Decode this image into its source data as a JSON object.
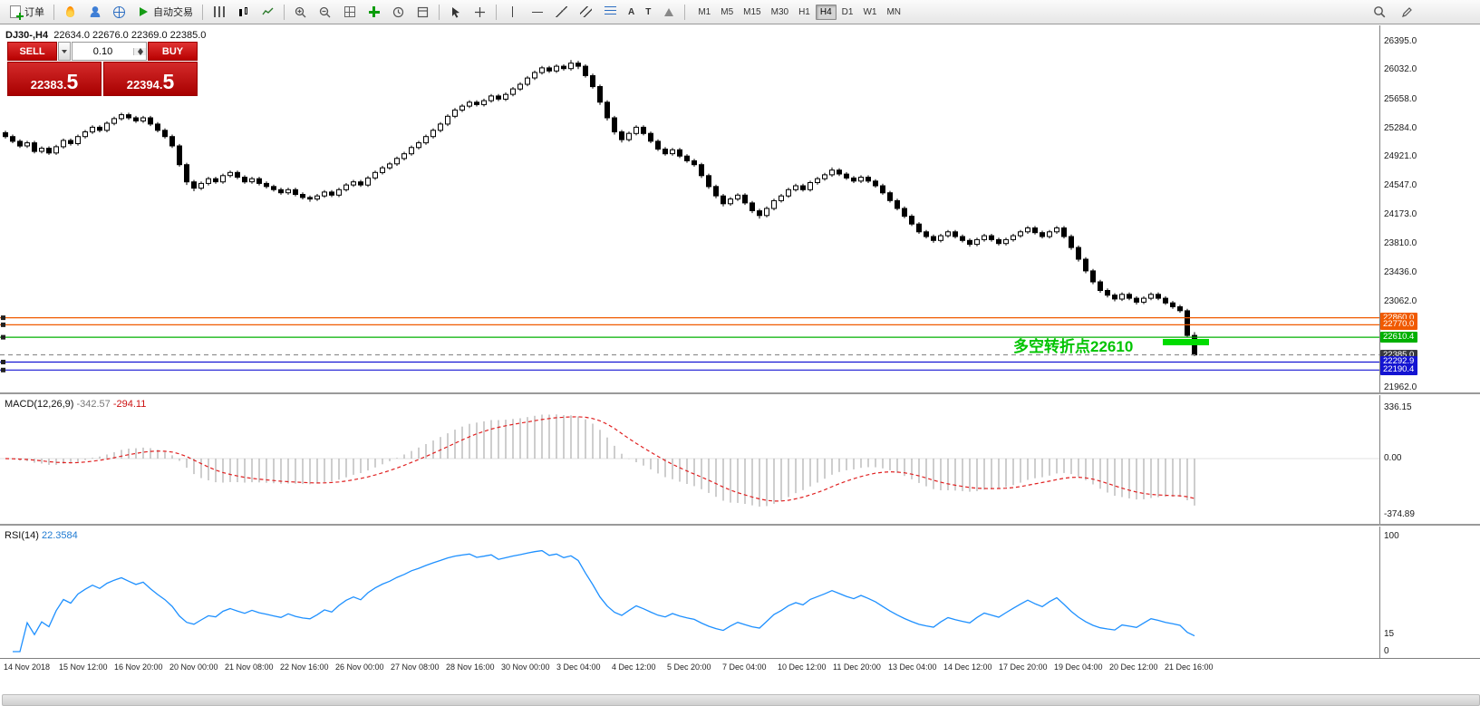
{
  "toolbar": {
    "new_order_label": "订单",
    "auto_trading_label": "自动交易",
    "text_tool_glyph": "A",
    "label_tool_glyph": "T",
    "timeframes": [
      "M1",
      "M5",
      "M15",
      "M30",
      "H1",
      "H4",
      "D1",
      "W1",
      "MN"
    ],
    "active_timeframe": "H4"
  },
  "trade_panel": {
    "sell_label": "SELL",
    "buy_label": "BUY",
    "volume": "0.10",
    "sell_price": "22383.5",
    "sell_price_main": "22383.",
    "sell_price_pips": "5",
    "buy_price": "22394.5",
    "buy_price_main": "22394.",
    "buy_price_pips": "5"
  },
  "chart": {
    "symbol_period": "DJ30-,H4",
    "ohlc": "22634.0 22676.0 22369.0 22385.0",
    "annotation": "多空转折点22610",
    "annotation_color": "#00c400"
  },
  "chart_data": {
    "type": "candlestick",
    "symbol": "DJ30-",
    "timeframe": "H4",
    "bull_color": "#ffffff",
    "bear_color": "#000000",
    "price_axis_labels": [
      "26395.0",
      "26032.0",
      "25658.0",
      "25284.0",
      "24921.0",
      "24547.0",
      "24173.0",
      "23810.0",
      "23436.0",
      "23062.0",
      "21962.0"
    ],
    "price_tags": [
      {
        "label": "22860.0",
        "price": 22860.0,
        "bg": "#f05a00"
      },
      {
        "label": "22770.0",
        "price": 22770.0,
        "bg": "#f05a00"
      },
      {
        "label": "22610.4",
        "price": 22610.4,
        "bg": "#00b000"
      },
      {
        "label": "22385.0",
        "price": 22385.0,
        "bg": "#38383f"
      },
      {
        "label": "22292.9",
        "price": 22292.9,
        "bg": "#1414d2"
      },
      {
        "label": "22190.4",
        "price": 22190.4,
        "bg": "#1414d2"
      }
    ],
    "hlines": [
      {
        "price": 22860.0,
        "color": "#f05a00",
        "style": "solid"
      },
      {
        "price": 22770.0,
        "color": "#f05a00",
        "style": "solid"
      },
      {
        "price": 22610.4,
        "color": "#00b000",
        "style": "solid"
      },
      {
        "price": 22385.0,
        "color": "#909090",
        "style": "dashed"
      },
      {
        "price": 22292.9,
        "color": "#1414d2",
        "style": "solid"
      },
      {
        "price": 22190.4,
        "color": "#1414d2",
        "style": "solid"
      }
    ],
    "highlight_segment": {
      "price": 22548,
      "bar_start": 160,
      "bar_end": 166,
      "color": "#00dc00",
      "thickness": 7
    },
    "macd": {
      "label": "MACD(12,26,9)",
      "value_main": "-342.57",
      "value_signal": "-294.11",
      "fast": 12,
      "slow": 26,
      "signal": 9,
      "scale": [
        336.15,
        0.0,
        -374.89
      ],
      "scale_labels": [
        "336.15",
        "0.00",
        "-374.89"
      ],
      "hist_color": "#b8b8b8",
      "signal_color": "#e02020"
    },
    "rsi": {
      "label": "RSI(14)",
      "value": "22.3584",
      "period": 14,
      "scale": [
        100,
        15,
        0
      ],
      "scale_labels": [
        "100",
        "15",
        "0"
      ],
      "line_color": "#1e90ff"
    },
    "time_axis": [
      "14 Nov 2018",
      "15 Nov 12:00",
      "16 Nov 20:00",
      "20 Nov 00:00",
      "21 Nov 08:00",
      "22 Nov 16:00",
      "26 Nov 00:00",
      "27 Nov 08:00",
      "28 Nov 16:00",
      "30 Nov 00:00",
      "3 Dec 04:00",
      "4 Dec 12:00",
      "5 Dec 20:00",
      "7 Dec 04:00",
      "10 Dec 12:00",
      "11 Dec 20:00",
      "13 Dec 04:00",
      "14 Dec 12:00",
      "17 Dec 20:00",
      "19 Dec 04:00",
      "20 Dec 12:00",
      "21 Dec 16:00"
    ],
    "candles": [
      [
        25230,
        25255,
        25155,
        25180
      ],
      [
        25180,
        25205,
        25095,
        25120
      ],
      [
        25120,
        25145,
        25035,
        25060
      ],
      [
        25060,
        25125,
        25035,
        25100
      ],
      [
        25100,
        25125,
        24965,
        24990
      ],
      [
        24990,
        25055,
        24965,
        25030
      ],
      [
        25030,
        25055,
        24945,
        24970
      ],
      [
        24970,
        25075,
        24945,
        25050
      ],
      [
        25050,
        25155,
        25025,
        25130
      ],
      [
        25130,
        25155,
        25065,
        25090
      ],
      [
        25090,
        25205,
        25065,
        25180
      ],
      [
        25180,
        25265,
        25155,
        25240
      ],
      [
        25240,
        25325,
        25215,
        25300
      ],
      [
        25300,
        25325,
        25235,
        25260
      ],
      [
        25260,
        25375,
        25235,
        25350
      ],
      [
        25350,
        25435,
        25325,
        25410
      ],
      [
        25410,
        25485,
        25385,
        25460
      ],
      [
        25460,
        25485,
        25395,
        25420
      ],
      [
        25420,
        25445,
        25355,
        25380
      ],
      [
        25380,
        25445,
        25355,
        25420
      ],
      [
        25420,
        25445,
        25315,
        25340
      ],
      [
        25340,
        25365,
        25235,
        25260
      ],
      [
        25260,
        25285,
        25155,
        25180
      ],
      [
        25180,
        25205,
        25035,
        25060
      ],
      [
        25060,
        25085,
        24795,
        24820
      ],
      [
        24820,
        24845,
        24560,
        24600
      ],
      [
        24600,
        24625,
        24480,
        24520
      ],
      [
        24520,
        24605,
        24495,
        24580
      ],
      [
        24580,
        24665,
        24555,
        24640
      ],
      [
        24640,
        24665,
        24575,
        24600
      ],
      [
        24600,
        24705,
        24575,
        24680
      ],
      [
        24680,
        24745,
        24655,
        24720
      ],
      [
        24720,
        24745,
        24635,
        24660
      ],
      [
        24660,
        24685,
        24575,
        24600
      ],
      [
        24600,
        24665,
        24575,
        24640
      ],
      [
        24640,
        24665,
        24555,
        24580
      ],
      [
        24580,
        24605,
        24515,
        24540
      ],
      [
        24540,
        24565,
        24475,
        24500
      ],
      [
        24500,
        24525,
        24435,
        24460
      ],
      [
        24460,
        24525,
        24435,
        24500
      ],
      [
        24500,
        24525,
        24415,
        24440
      ],
      [
        24440,
        24465,
        24375,
        24400
      ],
      [
        24400,
        24425,
        24345,
        24380
      ],
      [
        24380,
        24445,
        24355,
        24420
      ],
      [
        24420,
        24495,
        24395,
        24470
      ],
      [
        24470,
        24495,
        24405,
        24430
      ],
      [
        24430,
        24525,
        24405,
        24500
      ],
      [
        24500,
        24585,
        24475,
        24560
      ],
      [
        24560,
        24625,
        24535,
        24600
      ],
      [
        24600,
        24625,
        24535,
        24560
      ],
      [
        24560,
        24675,
        24535,
        24650
      ],
      [
        24650,
        24745,
        24625,
        24720
      ],
      [
        24720,
        24805,
        24695,
        24780
      ],
      [
        24780,
        24855,
        24755,
        24830
      ],
      [
        24830,
        24925,
        24805,
        24900
      ],
      [
        24900,
        24985,
        24875,
        24960
      ],
      [
        24960,
        25065,
        24935,
        25040
      ],
      [
        25040,
        25125,
        25015,
        25100
      ],
      [
        25100,
        25205,
        25075,
        25180
      ],
      [
        25180,
        25285,
        25155,
        25260
      ],
      [
        25260,
        25365,
        25235,
        25340
      ],
      [
        25340,
        25465,
        25315,
        25440
      ],
      [
        25440,
        25545,
        25415,
        25520
      ],
      [
        25520,
        25595,
        25495,
        25570
      ],
      [
        25570,
        25645,
        25545,
        25620
      ],
      [
        25620,
        25645,
        25565,
        25590
      ],
      [
        25590,
        25665,
        25565,
        25640
      ],
      [
        25640,
        25725,
        25615,
        25700
      ],
      [
        25700,
        25725,
        25635,
        25660
      ],
      [
        25660,
        25745,
        25635,
        25720
      ],
      [
        25720,
        25815,
        25695,
        25790
      ],
      [
        25790,
        25875,
        25765,
        25850
      ],
      [
        25850,
        25955,
        25825,
        25930
      ],
      [
        25930,
        26025,
        25905,
        26000
      ],
      [
        26000,
        26085,
        25975,
        26060
      ],
      [
        26060,
        26085,
        25995,
        26020
      ],
      [
        26020,
        26105,
        25995,
        26080
      ],
      [
        26080,
        26105,
        26025,
        26050
      ],
      [
        26050,
        26160,
        26025,
        26120
      ],
      [
        26120,
        26150,
        26045,
        26080
      ],
      [
        26080,
        26105,
        25935,
        25960
      ],
      [
        25960,
        25985,
        25795,
        25820
      ],
      [
        25820,
        25845,
        25585,
        25620
      ],
      [
        25620,
        25645,
        25385,
        25420
      ],
      [
        25420,
        25445,
        25205,
        25240
      ],
      [
        25240,
        25265,
        25105,
        25140
      ],
      [
        25140,
        25245,
        25115,
        25220
      ],
      [
        25220,
        25325,
        25195,
        25300
      ],
      [
        25300,
        25325,
        25195,
        25220
      ],
      [
        25220,
        25245,
        25095,
        25120
      ],
      [
        25120,
        25145,
        24995,
        25020
      ],
      [
        25020,
        25045,
        24935,
        24960
      ],
      [
        24960,
        25035,
        24935,
        25010
      ],
      [
        25010,
        25035,
        24905,
        24930
      ],
      [
        24930,
        24955,
        24845,
        24870
      ],
      [
        24870,
        24895,
        24795,
        24820
      ],
      [
        24820,
        24845,
        24650,
        24680
      ],
      [
        24680,
        24705,
        24510,
        24540
      ],
      [
        24540,
        24565,
        24390,
        24420
      ],
      [
        24420,
        24445,
        24285,
        24320
      ],
      [
        24320,
        24405,
        24295,
        24380
      ],
      [
        24380,
        24455,
        24355,
        24430
      ],
      [
        24430,
        24455,
        24305,
        24330
      ],
      [
        24330,
        24355,
        24200,
        24230
      ],
      [
        24230,
        24255,
        24130,
        24170
      ],
      [
        24170,
        24285,
        24145,
        24260
      ],
      [
        24260,
        24385,
        24235,
        24360
      ],
      [
        24360,
        24445,
        24335,
        24420
      ],
      [
        24420,
        24525,
        24395,
        24500
      ],
      [
        24500,
        24575,
        24475,
        24550
      ],
      [
        24550,
        24575,
        24475,
        24500
      ],
      [
        24500,
        24615,
        24475,
        24590
      ],
      [
        24590,
        24665,
        24565,
        24640
      ],
      [
        24640,
        24715,
        24615,
        24690
      ],
      [
        24690,
        24785,
        24665,
        24750
      ],
      [
        24750,
        24775,
        24675,
        24700
      ],
      [
        24700,
        24725,
        24625,
        24650
      ],
      [
        24650,
        24675,
        24585,
        24610
      ],
      [
        24610,
        24685,
        24585,
        24660
      ],
      [
        24660,
        24685,
        24585,
        24610
      ],
      [
        24610,
        24635,
        24525,
        24550
      ],
      [
        24550,
        24575,
        24435,
        24460
      ],
      [
        24460,
        24485,
        24335,
        24360
      ],
      [
        24360,
        24385,
        24235,
        24260
      ],
      [
        24260,
        24285,
        24135,
        24160
      ],
      [
        24160,
        24185,
        24035,
        24060
      ],
      [
        24060,
        24085,
        23935,
        23960
      ],
      [
        23960,
        23985,
        23875,
        23900
      ],
      [
        23900,
        23925,
        23820,
        23850
      ],
      [
        23850,
        23935,
        23825,
        23910
      ],
      [
        23910,
        23985,
        23885,
        23960
      ],
      [
        23960,
        23985,
        23875,
        23900
      ],
      [
        23900,
        23925,
        23825,
        23850
      ],
      [
        23850,
        23875,
        23770,
        23800
      ],
      [
        23800,
        23885,
        23775,
        23860
      ],
      [
        23860,
        23935,
        23835,
        23910
      ],
      [
        23910,
        23935,
        23835,
        23860
      ],
      [
        23860,
        23885,
        23785,
        23810
      ],
      [
        23810,
        23885,
        23785,
        23860
      ],
      [
        23860,
        23935,
        23835,
        23910
      ],
      [
        23910,
        23985,
        23885,
        23960
      ],
      [
        23960,
        24035,
        23935,
        24010
      ],
      [
        24010,
        24035,
        23925,
        23950
      ],
      [
        23950,
        23975,
        23875,
        23900
      ],
      [
        23900,
        23985,
        23875,
        23960
      ],
      [
        23960,
        24035,
        23935,
        24010
      ],
      [
        24010,
        24035,
        23875,
        23900
      ],
      [
        23900,
        23925,
        23730,
        23760
      ],
      [
        23760,
        23785,
        23580,
        23610
      ],
      [
        23610,
        23635,
        23430,
        23460
      ],
      [
        23460,
        23485,
        23290,
        23320
      ],
      [
        23320,
        23345,
        23180,
        23210
      ],
      [
        23210,
        23235,
        23120,
        23150
      ],
      [
        23150,
        23175,
        23070,
        23100
      ],
      [
        23100,
        23185,
        23075,
        23160
      ],
      [
        23160,
        23185,
        23085,
        23110
      ],
      [
        23110,
        23135,
        23030,
        23060
      ],
      [
        23060,
        23135,
        23035,
        23110
      ],
      [
        23110,
        23185,
        23085,
        23160
      ],
      [
        23160,
        23185,
        23085,
        23110
      ],
      [
        23110,
        23135,
        23025,
        23050
      ],
      [
        23050,
        23075,
        22975,
        23000
      ],
      [
        23000,
        23025,
        22925,
        22950
      ],
      [
        22950,
        22975,
        22610,
        22634
      ],
      [
        22634,
        22676,
        22369,
        22385
      ]
    ]
  }
}
